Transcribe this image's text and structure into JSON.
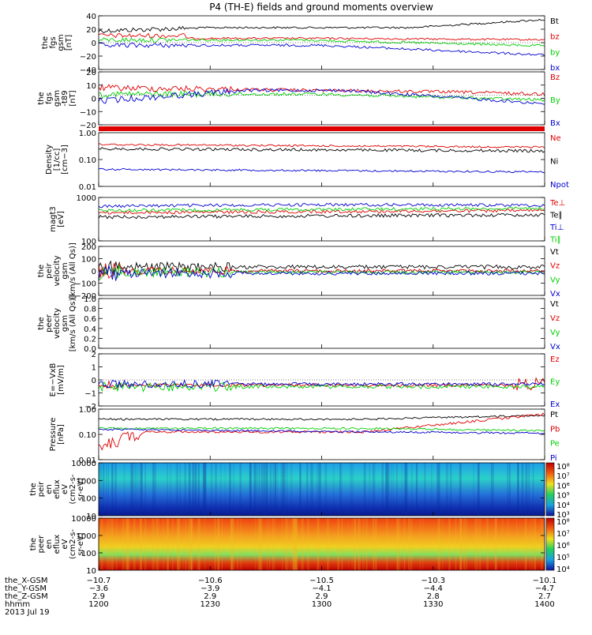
{
  "title": "P4 (TH-E) fields and ground moments overview",
  "colors": {
    "black": "#000000",
    "red": "#e00000",
    "green": "#00d000",
    "blue": "#0000d0"
  },
  "chart_data": [
    {
      "type": "line",
      "name": "the_fgs_gsm",
      "ylabel": [
        "the",
        "fgs",
        "gsm",
        "[nT]"
      ],
      "ylim": [
        -40,
        40
      ],
      "yticks": [
        "40",
        "20",
        "0",
        "−20",
        "−40"
      ],
      "series": [
        {
          "name": "Bt",
          "color": "black",
          "base": 25,
          "amp": 4
        },
        {
          "name": "bz",
          "color": "red",
          "base": 12,
          "amp": 4
        },
        {
          "name": "by",
          "color": "green",
          "base": -5,
          "amp": 5
        },
        {
          "name": "bx",
          "color": "blue",
          "base": -10,
          "amp": 6
        }
      ]
    },
    {
      "type": "line",
      "name": "the_fgs_gsm_t89",
      "ylabel": [
        "the",
        "fgs",
        "gsm",
        "-t89",
        "[nT]"
      ],
      "ylim": [
        -25,
        20
      ],
      "yticks": [
        "20",
        "10",
        "0",
        "−10",
        "−20"
      ],
      "series": [
        {
          "name": "Bz",
          "color": "red",
          "base": 5,
          "amp": 4
        },
        {
          "name": "By",
          "color": "green",
          "base": 2,
          "amp": 4
        },
        {
          "name": "Bx",
          "color": "blue",
          "base": 0,
          "amp": 6
        }
      ]
    },
    {
      "type": "line",
      "name": "density",
      "ylabel": [
        "Density",
        "[1/cc]",
        "[cm−3]"
      ],
      "yscale": "log",
      "yticks": [
        "1.00",
        "0.10",
        "0.01"
      ],
      "series": [
        {
          "name": "Ne",
          "color": "red"
        },
        {
          "name": "Ni",
          "color": "black"
        },
        {
          "name": "Npot",
          "color": "blue"
        }
      ]
    },
    {
      "type": "line",
      "name": "temperature",
      "ylabel": [
        "magt3",
        "[eV]"
      ],
      "yscale": "log",
      "yticks": [
        "1000",
        "100"
      ],
      "series": [
        {
          "name": "Te⊥",
          "color": "red"
        },
        {
          "name": "Te∥",
          "color": "black"
        },
        {
          "name": "Ti⊥",
          "color": "blue"
        },
        {
          "name": "Ti∥",
          "color": "green"
        }
      ]
    },
    {
      "type": "line",
      "name": "the_peir_velocity",
      "ylabel": [
        "the",
        "peir",
        "velocity",
        "gsm",
        "[km/s (All Qs)]"
      ],
      "ylim": [
        -200,
        200
      ],
      "yticks": [
        "200",
        "100",
        "0",
        "−100",
        "−200"
      ],
      "series": [
        {
          "name": "Vt",
          "color": "black"
        },
        {
          "name": "Vz",
          "color": "red"
        },
        {
          "name": "Vy",
          "color": "green"
        },
        {
          "name": "Vx",
          "color": "blue"
        }
      ]
    },
    {
      "type": "line",
      "name": "the_peer_velocity",
      "ylabel": [
        "the",
        "peer",
        "velocity",
        "gsm",
        "[km/s (All Qs)]"
      ],
      "ylim": [
        0,
        1
      ],
      "yticks": [
        "1.0",
        "0.8",
        "0.6",
        "0.4",
        "0.2",
        "0.0"
      ],
      "series": [
        {
          "name": "Vt",
          "color": "black"
        },
        {
          "name": "Vz",
          "color": "red"
        },
        {
          "name": "Vy",
          "color": "green"
        },
        {
          "name": "Vx",
          "color": "blue"
        }
      ]
    },
    {
      "type": "line",
      "name": "efield",
      "ylabel": [
        "E=−VxB",
        "[mV/m]"
      ],
      "ylim": [
        -2,
        2
      ],
      "yticks": [
        "2",
        "1",
        "0",
        "−1",
        "−2"
      ],
      "series": [
        {
          "name": "Ez",
          "color": "red"
        },
        {
          "name": "Ey",
          "color": "green"
        },
        {
          "name": "Ex",
          "color": "blue"
        }
      ]
    },
    {
      "type": "line",
      "name": "pressure",
      "ylabel": [
        "Pressure",
        "[nPa]"
      ],
      "yscale": "log",
      "yticks": [
        "1.00",
        "0.10",
        "0.01"
      ],
      "series": [
        {
          "name": "Pt",
          "color": "black"
        },
        {
          "name": "Pb",
          "color": "red"
        },
        {
          "name": "Pe",
          "color": "green"
        },
        {
          "name": "Pi",
          "color": "blue"
        }
      ]
    },
    {
      "type": "heatmap",
      "name": "the_peir_en_eflux",
      "ylabel": [
        "the",
        "peir",
        "en",
        "eflux",
        "eV",
        "(cm2-s-",
        "sr-eV)"
      ],
      "yscale": "log",
      "yticks": [
        "10000",
        "1000",
        "100",
        "10"
      ],
      "colorbar": [
        "10⁸",
        "10⁷",
        "10⁶",
        "10⁵",
        "10⁴",
        "10³"
      ]
    },
    {
      "type": "heatmap",
      "name": "the_peer_en_eflux",
      "ylabel": [
        "the",
        "peer",
        "en",
        "eflux",
        "eV",
        "(cm2-s-",
        "sr-eV)"
      ],
      "yscale": "log",
      "yticks": [
        "10000",
        "1000",
        "100",
        "10"
      ],
      "colorbar": [
        "10⁸",
        "10⁷",
        "10⁶",
        "10⁵",
        "10⁴"
      ]
    }
  ],
  "xaxis": {
    "rows": [
      {
        "label": "the_X-GSM",
        "values": [
          "−10.7",
          "−10.6",
          "−10.5",
          "−10.3",
          "−10.1"
        ]
      },
      {
        "label": "the_Y-GSM",
        "values": [
          "−3.6",
          "−3.9",
          "−4.1",
          "−4.4",
          "−4.7"
        ]
      },
      {
        "label": "the_Z-GSM",
        "values": [
          "2.9",
          "2.9",
          "2.9",
          "2.8",
          "2.7"
        ]
      },
      {
        "label": "hhmm",
        "values": [
          "1200",
          "1230",
          "1300",
          "1330",
          "1400"
        ]
      }
    ],
    "date": "2013 Jul 19"
  }
}
